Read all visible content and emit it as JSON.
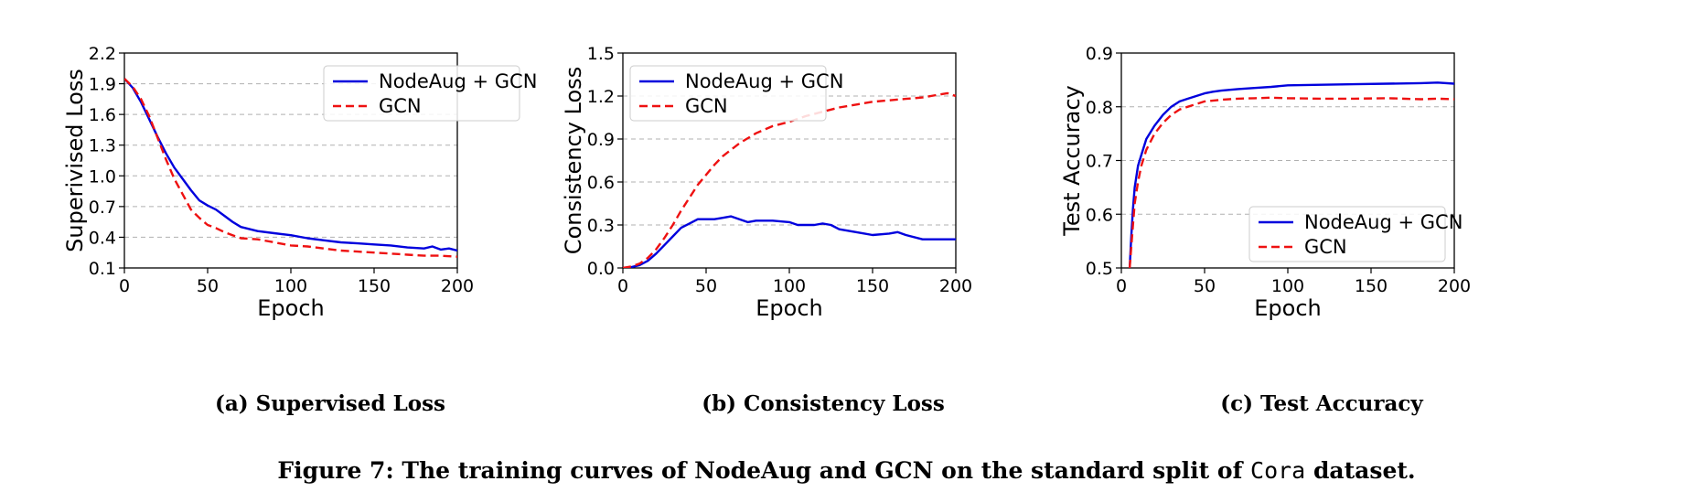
{
  "figure": {
    "caption_prefix": "Figure 7: The training curves of NodeAug and GCN on the standard split of ",
    "caption_dataset": "Cora",
    "caption_suffix": " dataset."
  },
  "colors": {
    "nodeaug": "#0000dd",
    "gcn": "#ee1111",
    "grid": "#b0b0b0"
  },
  "chart_data": [
    {
      "type": "line",
      "subcaption": "(a) Supervised Loss",
      "xlabel": "Epoch",
      "ylabel": "Superivised Loss",
      "xlim": [
        0,
        200
      ],
      "ylim": [
        0.1,
        2.2
      ],
      "xticks": [
        0,
        50,
        100,
        150,
        200
      ],
      "yticks": [
        0.1,
        0.4,
        0.7,
        1.0,
        1.3,
        1.6,
        1.9,
        2.2
      ],
      "ytick_labels": [
        "0.1",
        "0.4",
        "0.7",
        "1.0",
        "1.3",
        "1.6",
        "1.9",
        "2.2"
      ],
      "grid": "y-dashed",
      "legend": "top-right",
      "series": [
        {
          "name": "NodeAug + GCN",
          "style": "solid",
          "x": [
            0,
            5,
            10,
            15,
            20,
            25,
            30,
            35,
            40,
            45,
            50,
            55,
            60,
            65,
            70,
            80,
            90,
            100,
            110,
            120,
            130,
            140,
            150,
            160,
            170,
            180,
            185,
            190,
            195,
            200
          ],
          "y": [
            1.95,
            1.86,
            1.72,
            1.55,
            1.38,
            1.22,
            1.08,
            0.97,
            0.86,
            0.76,
            0.71,
            0.67,
            0.61,
            0.55,
            0.5,
            0.46,
            0.44,
            0.42,
            0.39,
            0.37,
            0.35,
            0.34,
            0.33,
            0.32,
            0.3,
            0.29,
            0.31,
            0.28,
            0.29,
            0.27
          ]
        },
        {
          "name": "GCN",
          "style": "dashed",
          "x": [
            0,
            5,
            10,
            15,
            20,
            25,
            30,
            35,
            40,
            45,
            50,
            55,
            60,
            65,
            70,
            80,
            90,
            100,
            110,
            120,
            130,
            140,
            150,
            160,
            170,
            180,
            190,
            200
          ],
          "y": [
            1.95,
            1.87,
            1.75,
            1.58,
            1.37,
            1.16,
            0.97,
            0.82,
            0.67,
            0.59,
            0.52,
            0.49,
            0.45,
            0.42,
            0.39,
            0.38,
            0.35,
            0.32,
            0.31,
            0.29,
            0.27,
            0.26,
            0.25,
            0.24,
            0.23,
            0.22,
            0.22,
            0.21
          ]
        }
      ]
    },
    {
      "type": "line",
      "subcaption": "(b) Consistency Loss",
      "xlabel": "Epoch",
      "ylabel": "Consistency Loss",
      "xlim": [
        0,
        200
      ],
      "ylim": [
        0.0,
        1.5
      ],
      "xticks": [
        0,
        50,
        100,
        150,
        200
      ],
      "yticks": [
        0.0,
        0.3,
        0.6,
        0.9,
        1.2,
        1.5
      ],
      "ytick_labels": [
        "0.0",
        "0.3",
        "0.6",
        "0.9",
        "1.2",
        "1.5"
      ],
      "grid": "y-dashed",
      "legend": "top-left",
      "series": [
        {
          "name": "NodeAug + GCN",
          "style": "solid",
          "x": [
            0,
            5,
            10,
            15,
            20,
            25,
            30,
            35,
            40,
            45,
            50,
            55,
            60,
            65,
            70,
            75,
            80,
            90,
            100,
            105,
            110,
            115,
            120,
            125,
            130,
            140,
            150,
            160,
            165,
            170,
            180,
            190,
            200
          ],
          "y": [
            0.0,
            0.005,
            0.02,
            0.05,
            0.1,
            0.16,
            0.22,
            0.28,
            0.31,
            0.34,
            0.34,
            0.34,
            0.35,
            0.36,
            0.34,
            0.32,
            0.33,
            0.33,
            0.32,
            0.3,
            0.3,
            0.3,
            0.31,
            0.3,
            0.27,
            0.25,
            0.23,
            0.24,
            0.25,
            0.23,
            0.2,
            0.2,
            0.2
          ]
        },
        {
          "name": "GCN",
          "style": "dashed",
          "x": [
            0,
            5,
            10,
            15,
            20,
            25,
            30,
            35,
            40,
            45,
            50,
            55,
            60,
            70,
            80,
            90,
            100,
            110,
            120,
            130,
            140,
            150,
            160,
            170,
            180,
            190,
            195,
            200
          ],
          "y": [
            0.0,
            0.01,
            0.03,
            0.07,
            0.13,
            0.21,
            0.3,
            0.4,
            0.49,
            0.58,
            0.65,
            0.72,
            0.78,
            0.87,
            0.94,
            0.99,
            1.02,
            1.06,
            1.09,
            1.12,
            1.14,
            1.16,
            1.17,
            1.18,
            1.19,
            1.21,
            1.22,
            1.2
          ]
        }
      ]
    },
    {
      "type": "line",
      "subcaption": "(c) Test Accuracy",
      "xlabel": "Epoch",
      "ylabel": "Test Accuracy",
      "xlim": [
        0,
        200
      ],
      "ylim": [
        0.5,
        0.9
      ],
      "xticks": [
        0,
        50,
        100,
        150,
        200
      ],
      "yticks": [
        0.5,
        0.6,
        0.7,
        0.8,
        0.9
      ],
      "ytick_labels": [
        "0.5",
        "0.6",
        "0.7",
        "0.8",
        "0.9"
      ],
      "grid": "y-dashed",
      "legend": "lower-right",
      "series": [
        {
          "name": "NodeAug + GCN",
          "style": "solid",
          "x": [
            5,
            6,
            7,
            8,
            10,
            12,
            15,
            20,
            25,
            30,
            35,
            40,
            45,
            50,
            55,
            60,
            70,
            80,
            90,
            100,
            120,
            140,
            160,
            180,
            190,
            200
          ],
          "y": [
            0.5,
            0.56,
            0.61,
            0.65,
            0.69,
            0.71,
            0.74,
            0.765,
            0.785,
            0.8,
            0.81,
            0.815,
            0.82,
            0.825,
            0.828,
            0.83,
            0.833,
            0.835,
            0.837,
            0.84,
            0.841,
            0.842,
            0.843,
            0.844,
            0.845,
            0.843
          ]
        },
        {
          "name": "GCN",
          "style": "dashed",
          "x": [
            5,
            6,
            7,
            8,
            10,
            12,
            15,
            20,
            25,
            30,
            35,
            40,
            45,
            50,
            60,
            70,
            80,
            90,
            100,
            120,
            140,
            160,
            180,
            190,
            200
          ],
          "y": [
            0.5,
            0.54,
            0.58,
            0.62,
            0.66,
            0.69,
            0.72,
            0.75,
            0.77,
            0.785,
            0.795,
            0.8,
            0.805,
            0.81,
            0.813,
            0.815,
            0.816,
            0.817,
            0.816,
            0.815,
            0.815,
            0.816,
            0.814,
            0.815,
            0.814
          ]
        }
      ]
    }
  ]
}
